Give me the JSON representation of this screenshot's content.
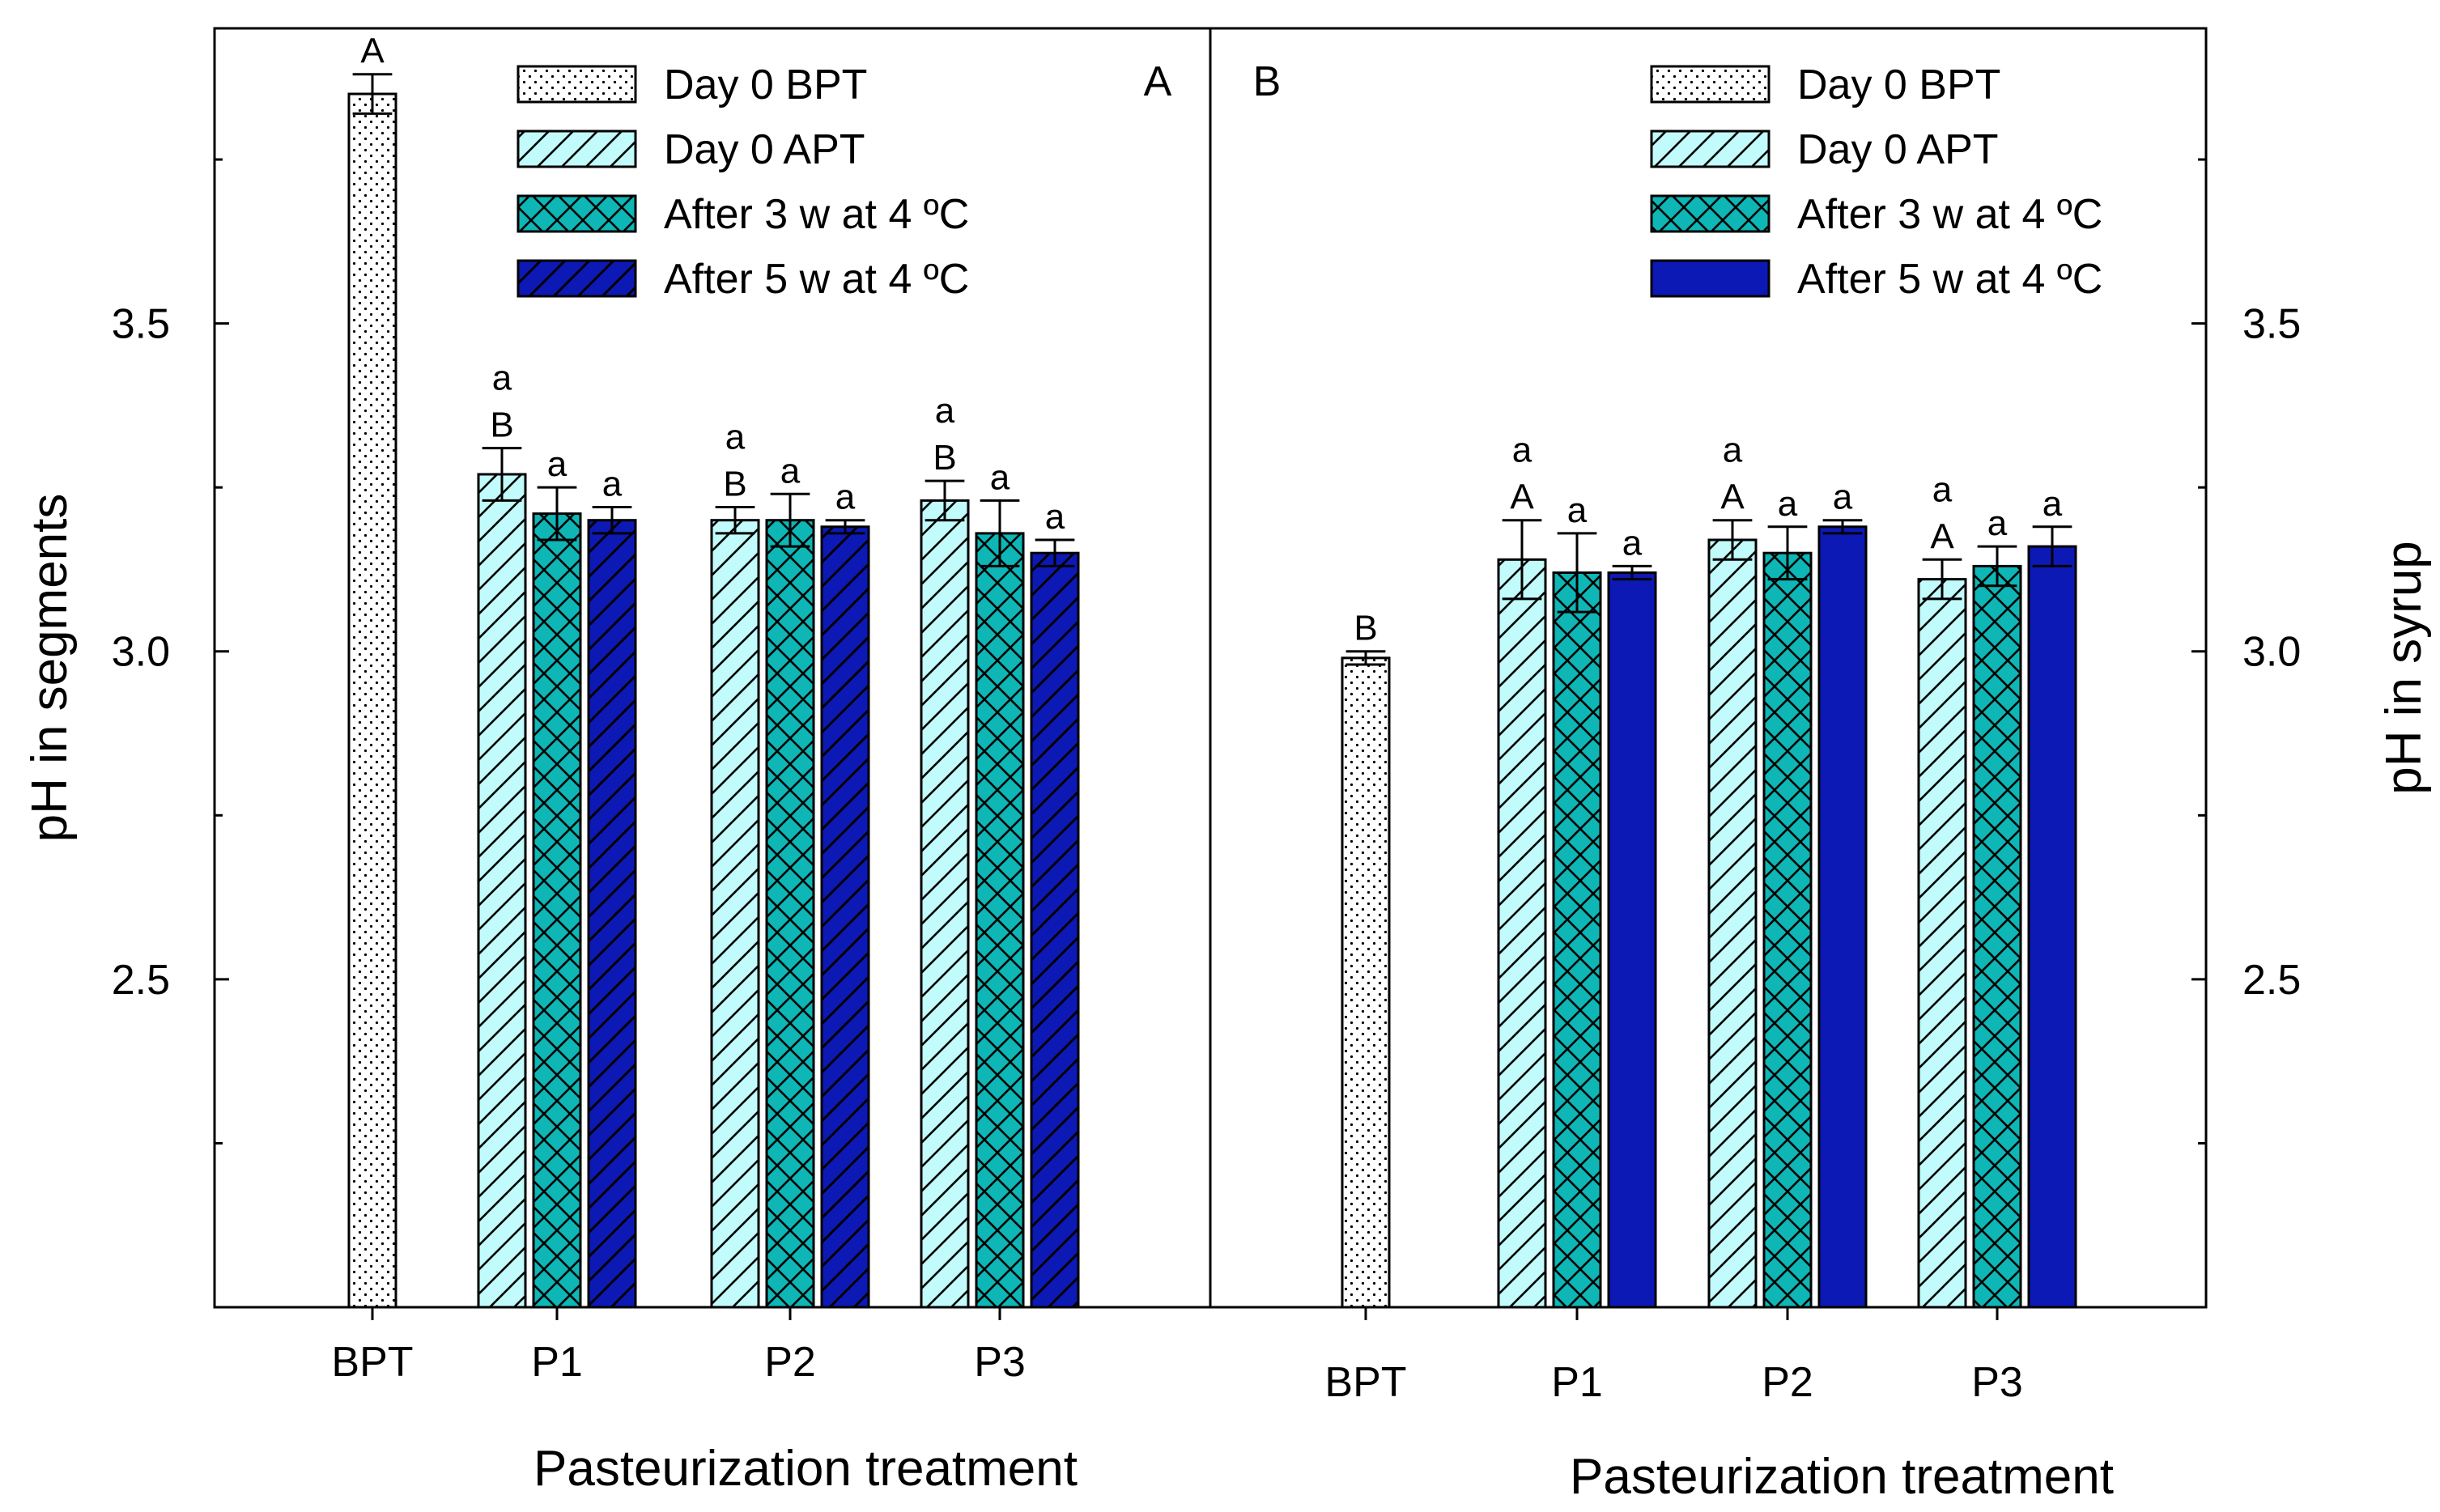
{
  "chart_data": [
    {
      "type": "bar",
      "panel_label": "A",
      "title": "",
      "xlabel": "Pasteurization treatment",
      "ylabel": "pH in segments",
      "ylim": [
        2.0,
        3.95
      ],
      "yticks": [
        "2.5",
        "3.0",
        "3.5"
      ],
      "y_axis_side": "left",
      "grid": false,
      "legend_position": "top",
      "categories": [
        "BPT",
        "P1",
        "P2",
        "P3"
      ],
      "series": [
        {
          "name": "Day 0 BPT",
          "pattern": "dots",
          "color": "#ffffff",
          "values": [
            3.85,
            null,
            null,
            null
          ],
          "errors": [
            0.03,
            null,
            null,
            null
          ],
          "labels": [
            [
              "A"
            ],
            null,
            null,
            null
          ]
        },
        {
          "name": "Day 0 APT",
          "pattern": "hatch-forward",
          "color": "#c2fbfb",
          "values": [
            null,
            3.27,
            3.2,
            3.23
          ],
          "errors": [
            null,
            0.04,
            0.02,
            0.03
          ],
          "labels": [
            null,
            [
              "a",
              "B"
            ],
            [
              "a",
              "B"
            ],
            [
              "a",
              "B"
            ]
          ]
        },
        {
          "name": "After 3 w at 4 ºC",
          "pattern": "cross-hatch",
          "color": "#0fb6b6",
          "values": [
            null,
            3.21,
            3.2,
            3.18
          ],
          "errors": [
            null,
            0.04,
            0.04,
            0.05
          ],
          "labels": [
            null,
            [
              "a"
            ],
            [
              "a"
            ],
            [
              "a"
            ]
          ]
        },
        {
          "name": "After 5 w at 4 ºC",
          "pattern": "hatch-forward",
          "color": "#0d19b4",
          "values": [
            null,
            3.2,
            3.19,
            3.15
          ],
          "errors": [
            null,
            0.02,
            0.01,
            0.02
          ],
          "labels": [
            null,
            [
              "a"
            ],
            [
              "a"
            ],
            [
              "a"
            ]
          ]
        }
      ]
    },
    {
      "type": "bar",
      "panel_label": "B",
      "title": "",
      "xlabel": "Pasteurization treatment",
      "ylabel": "pH in syrup",
      "ylim": [
        2.0,
        3.95
      ],
      "yticks": [
        "2.5",
        "3.0",
        "3.5"
      ],
      "y_axis_side": "right",
      "grid": false,
      "legend_position": "top",
      "categories": [
        "BPT",
        "P1",
        "P2",
        "P3"
      ],
      "series": [
        {
          "name": "Day 0 BPT",
          "pattern": "dots",
          "color": "#ffffff",
          "values": [
            2.99,
            null,
            null,
            null
          ],
          "errors": [
            0.01,
            null,
            null,
            null
          ],
          "labels": [
            [
              "B"
            ],
            null,
            null,
            null
          ]
        },
        {
          "name": "Day 0 APT",
          "pattern": "hatch-forward",
          "color": "#c2fbfb",
          "values": [
            null,
            3.14,
            3.17,
            3.11
          ],
          "errors": [
            null,
            0.06,
            0.03,
            0.03
          ],
          "labels": [
            null,
            [
              "a",
              "A"
            ],
            [
              "a",
              "A"
            ],
            [
              "a",
              "A"
            ]
          ]
        },
        {
          "name": "After 3 w at 4 ºC",
          "pattern": "cross-hatch",
          "color": "#0fb6b6",
          "values": [
            null,
            3.12,
            3.15,
            3.13
          ],
          "errors": [
            null,
            0.06,
            0.04,
            0.03
          ],
          "labels": [
            null,
            [
              "a"
            ],
            [
              "a"
            ],
            [
              "a"
            ]
          ]
        },
        {
          "name": "After 5 w at 4 ºC",
          "pattern": "solid",
          "color": "#0d19b4",
          "values": [
            null,
            3.12,
            3.19,
            3.16
          ],
          "errors": [
            null,
            0.01,
            0.01,
            0.03
          ],
          "labels": [
            null,
            [
              "a"
            ],
            [
              "a"
            ],
            [
              "a"
            ]
          ]
        }
      ]
    }
  ]
}
